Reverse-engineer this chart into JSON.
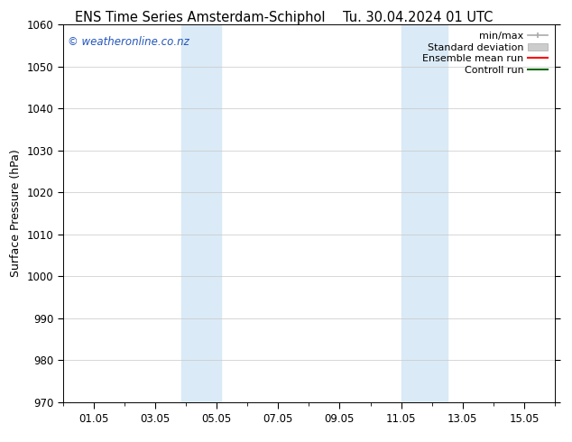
{
  "title_left": "ENS Time Series Amsterdam-Schiphol",
  "title_right": "Tu. 30.04.2024 01 UTC",
  "ylabel": "Surface Pressure (hPa)",
  "ylim": [
    970,
    1060
  ],
  "yticks": [
    970,
    980,
    990,
    1000,
    1010,
    1020,
    1030,
    1040,
    1050,
    1060
  ],
  "xtick_labels": [
    "01.05",
    "03.05",
    "05.05",
    "07.05",
    "09.05",
    "11.05",
    "13.05",
    "15.05"
  ],
  "xtick_positions": [
    1,
    3,
    5,
    7,
    9,
    11,
    13,
    15
  ],
  "xlim": [
    0,
    16
  ],
  "shaded_bands": [
    {
      "x_start": 3.85,
      "x_end": 5.15
    },
    {
      "x_start": 11.0,
      "x_end": 12.5
    }
  ],
  "shaded_color": "#daeaf6",
  "grid_color": "#c8c8c8",
  "watermark_text": "© weatheronline.co.nz",
  "watermark_color": "#2255bb",
  "bg_color": "#ffffff",
  "title_fontsize": 10.5,
  "ylabel_fontsize": 9,
  "tick_fontsize": 8.5,
  "watermark_fontsize": 8.5,
  "legend_fontsize": 8,
  "legend_minmax_color": "#aaaaaa",
  "legend_std_color": "#cccccc",
  "legend_ens_color": "#ff0000",
  "legend_ctrl_color": "#006600"
}
